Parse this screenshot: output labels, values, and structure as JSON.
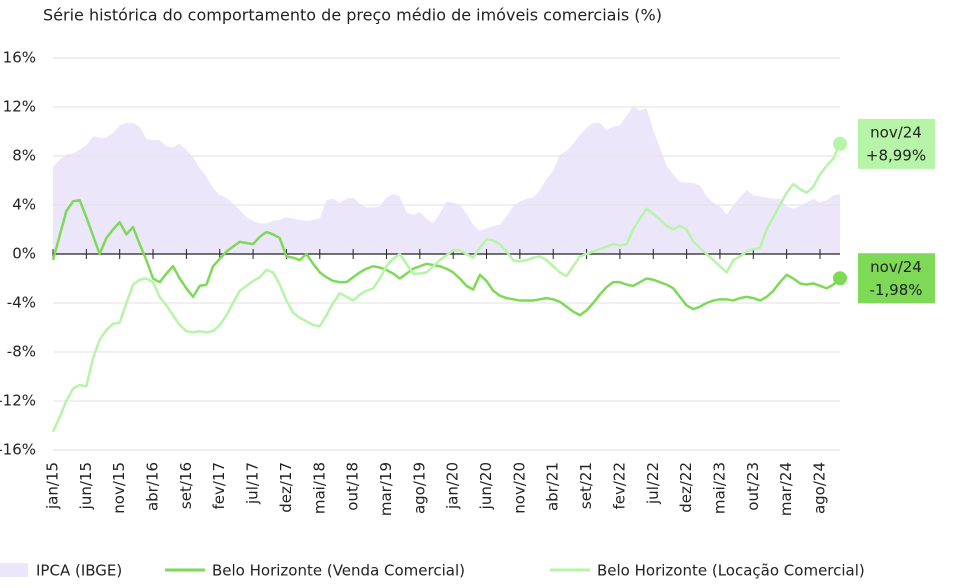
{
  "chart_data": {
    "type": "line",
    "title": "Série histórica do comportamento de preço médio de imóveis comerciais (%)",
    "categories": [
      "jan/15",
      null,
      null,
      null,
      null,
      "jun/15",
      null,
      null,
      null,
      null,
      "nov/15",
      null,
      null,
      null,
      null,
      "abr/16",
      null,
      null,
      null,
      null,
      "set/16",
      null,
      null,
      null,
      null,
      "fev/17",
      null,
      null,
      null,
      null,
      "jul/17",
      null,
      null,
      null,
      null,
      "dez/17",
      null,
      null,
      null,
      null,
      "mai/18",
      null,
      null,
      null,
      null,
      "out/18",
      null,
      null,
      null,
      null,
      "mar/19",
      null,
      null,
      null,
      null,
      "ago/19",
      null,
      null,
      null,
      null,
      "jan/20",
      null,
      null,
      null,
      null,
      "jun/20",
      null,
      null,
      null,
      null,
      "nov/20",
      null,
      null,
      null,
      null,
      "abr/21",
      null,
      null,
      null,
      null,
      "set/21",
      null,
      null,
      null,
      null,
      "fev/22",
      null,
      null,
      null,
      null,
      "jul/22",
      null,
      null,
      null,
      null,
      "dez/22",
      null,
      null,
      null,
      null,
      "mai/23",
      null,
      null,
      null,
      null,
      "out/23",
      null,
      null,
      null,
      null,
      "mar/24",
      null,
      null,
      null,
      null,
      "ago/24",
      null,
      null,
      null
    ],
    "end_label": "nov/24",
    "series": [
      {
        "name": "IPCA (IBGE)",
        "color": "#ece6fb",
        "area": true,
        "values": [
          7.1,
          7.7,
          8.1,
          8.2,
          8.5,
          8.9,
          9.6,
          9.5,
          9.5,
          9.9,
          10.5,
          10.7,
          10.7,
          10.4,
          9.4,
          9.3,
          9.3,
          8.8,
          8.7,
          9.0,
          8.5,
          7.9,
          7.0,
          6.3,
          5.4,
          4.8,
          4.6,
          4.1,
          3.6,
          3.0,
          2.7,
          2.5,
          2.5,
          2.7,
          2.8,
          3.0,
          2.9,
          2.8,
          2.7,
          2.8,
          2.9,
          4.4,
          4.5,
          4.2,
          4.5,
          4.6,
          4.1,
          3.8,
          3.8,
          3.9,
          4.6,
          4.9,
          4.7,
          3.4,
          3.2,
          3.4,
          2.9,
          2.5,
          3.3,
          4.3,
          4.2,
          4.0,
          3.3,
          2.4,
          1.9,
          2.1,
          2.3,
          2.4,
          3.1,
          3.9,
          4.3,
          4.5,
          4.6,
          5.2,
          6.1,
          6.8,
          8.1,
          8.4,
          9.0,
          9.7,
          10.3,
          10.7,
          10.7,
          10.1,
          10.4,
          10.5,
          11.3,
          12.1,
          11.7,
          11.9,
          10.1,
          8.7,
          7.2,
          6.5,
          5.9,
          5.8,
          5.8,
          5.6,
          4.7,
          4.2,
          3.9,
          3.2,
          4.0,
          4.6,
          5.2,
          4.8,
          4.7,
          4.6,
          4.5,
          4.5,
          3.9,
          3.7,
          3.9,
          4.2,
          4.5,
          4.2,
          4.4,
          4.8,
          4.9
        ]
      },
      {
        "name": "Belo Horizonte (Venda Comercial)",
        "color": "#7ed957",
        "end_value_label": "-1,98%",
        "values": [
          -0.5,
          1.5,
          3.5,
          4.3,
          4.4,
          3.0,
          1.5,
          0.0,
          1.3,
          2.0,
          2.6,
          1.6,
          2.2,
          0.8,
          -0.5,
          -2.0,
          -2.3,
          -1.6,
          -1.0,
          -2.0,
          -2.8,
          -3.5,
          -2.6,
          -2.5,
          -1.0,
          -0.4,
          0.2,
          0.6,
          1.0,
          0.9,
          0.8,
          1.4,
          1.8,
          1.6,
          1.3,
          -0.2,
          -0.3,
          -0.5,
          0.0,
          -0.8,
          -1.5,
          -1.9,
          -2.2,
          -2.3,
          -2.3,
          -1.9,
          -1.5,
          -1.2,
          -1.0,
          -1.1,
          -1.3,
          -1.6,
          -2.0,
          -1.6,
          -1.2,
          -1.0,
          -0.8,
          -0.9,
          -1.0,
          -1.2,
          -1.5,
          -2.0,
          -2.6,
          -2.9,
          -1.7,
          -2.2,
          -3.0,
          -3.4,
          -3.6,
          -3.7,
          -3.8,
          -3.8,
          -3.8,
          -3.7,
          -3.6,
          -3.7,
          -3.9,
          -4.3,
          -4.7,
          -5.0,
          -4.6,
          -4.0,
          -3.3,
          -2.7,
          -2.3,
          -2.3,
          -2.5,
          -2.6,
          -2.3,
          -2.0,
          -2.1,
          -2.3,
          -2.5,
          -2.8,
          -3.5,
          -4.2,
          -4.5,
          -4.3,
          -4.0,
          -3.8,
          -3.7,
          -3.7,
          -3.8,
          -3.6,
          -3.5,
          -3.6,
          -3.8,
          -3.5,
          -3.0,
          -2.3,
          -1.7,
          -2.0,
          -2.4,
          -2.5,
          -2.4,
          -2.6,
          -2.8,
          -2.5,
          -1.98
        ]
      },
      {
        "name": "Belo Horizonte (Locação Comercial)",
        "color": "#b6f5a8",
        "end_value_label": "+8,99%",
        "values": [
          -14.5,
          -13.3,
          -12.0,
          -11.0,
          -10.7,
          -10.8,
          -8.5,
          -7.0,
          -6.2,
          -5.7,
          -5.6,
          -4.0,
          -2.5,
          -2.1,
          -2.0,
          -2.3,
          -3.5,
          -4.2,
          -5.0,
          -5.8,
          -6.3,
          -6.4,
          -6.3,
          -6.4,
          -6.3,
          -5.8,
          -5.0,
          -4.0,
          -3.0,
          -2.6,
          -2.2,
          -1.9,
          -1.3,
          -1.5,
          -2.5,
          -3.8,
          -4.8,
          -5.2,
          -5.5,
          -5.8,
          -5.9,
          -5.0,
          -4.0,
          -3.2,
          -3.5,
          -3.8,
          -3.3,
          -3.0,
          -2.8,
          -2.0,
          -1.0,
          -0.4,
          0.0,
          -0.8,
          -1.6,
          -1.6,
          -1.5,
          -1.0,
          -0.5,
          -0.1,
          0.3,
          0.3,
          0.0,
          -0.3,
          0.5,
          1.2,
          1.1,
          0.8,
          0.2,
          -0.5,
          -0.6,
          -0.5,
          -0.3,
          -0.2,
          -0.5,
          -1.0,
          -1.5,
          -1.8,
          -1.0,
          -0.2,
          0.0,
          0.2,
          0.4,
          0.6,
          0.8,
          0.7,
          0.8,
          2.0,
          2.9,
          3.7,
          3.3,
          2.8,
          2.3,
          2.0,
          2.3,
          2.0,
          1.0,
          0.5,
          0.0,
          -0.5,
          -1.0,
          -1.5,
          -0.5,
          -0.2,
          0.2,
          0.4,
          0.5,
          2.0,
          3.0,
          4.0,
          5.0,
          5.7,
          5.3,
          5.0,
          5.5,
          6.5,
          7.2,
          7.8,
          8.99
        ]
      }
    ],
    "ylim": [
      -16,
      16
    ],
    "yticks": [
      {
        "value": -16,
        "label": "-16%"
      },
      {
        "value": -12,
        "label": "-12%"
      },
      {
        "value": -8,
        "label": "-8%"
      },
      {
        "value": -4,
        "label": "-4%"
      },
      {
        "value": 0,
        "label": "0%"
      },
      {
        "value": 4,
        "label": "4%"
      },
      {
        "value": 8,
        "label": "8%"
      },
      {
        "value": 12,
        "label": "12%"
      },
      {
        "value": 16,
        "label": "16%"
      }
    ],
    "grid": true
  }
}
